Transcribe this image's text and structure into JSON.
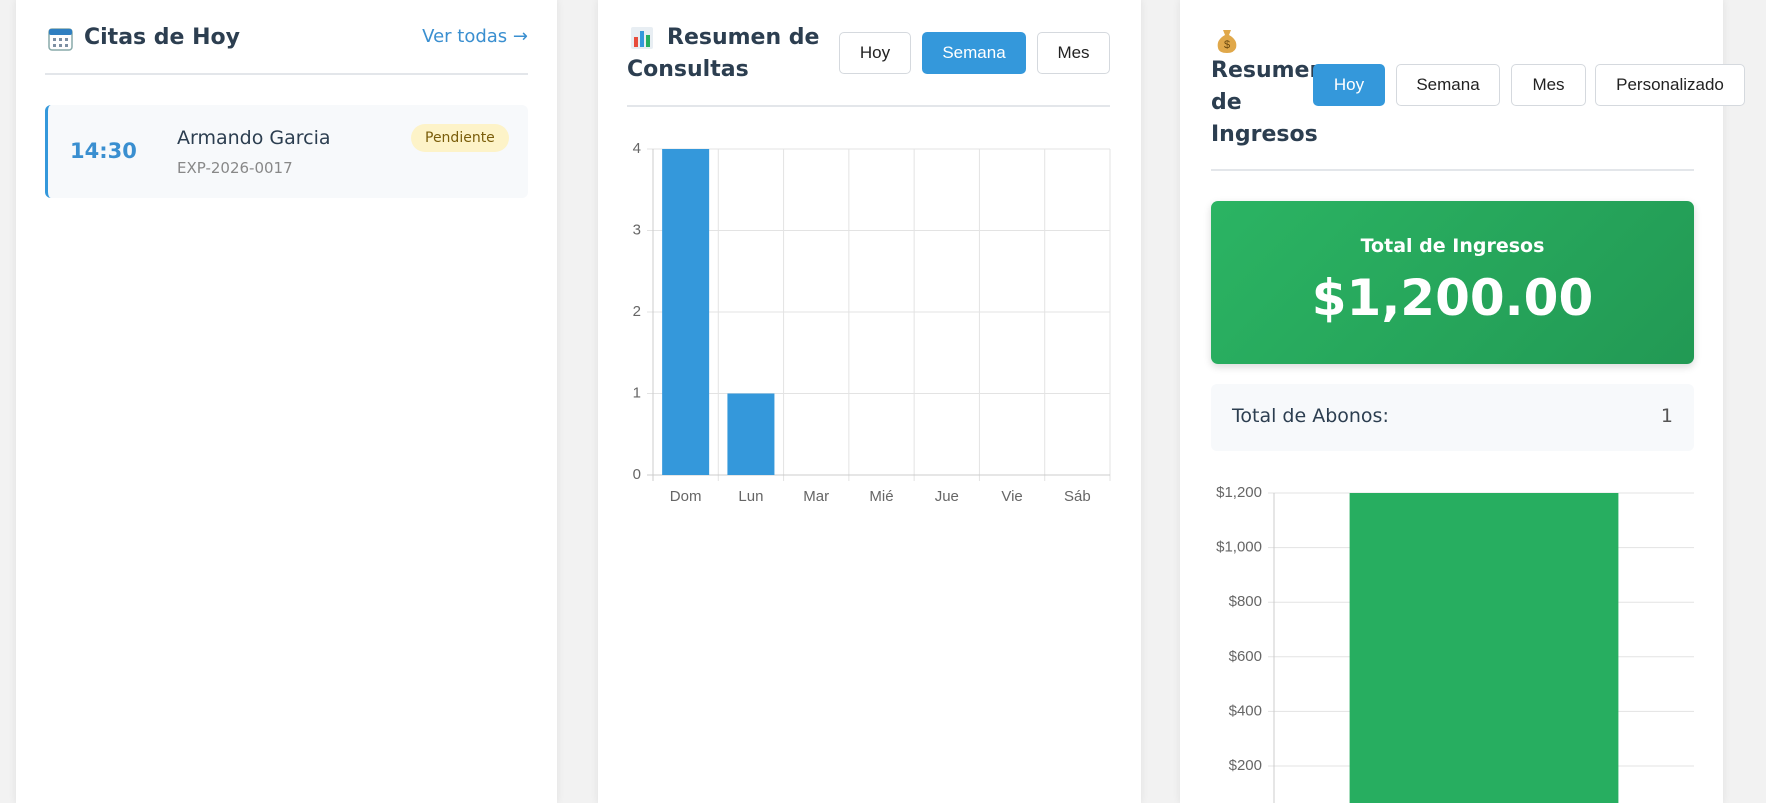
{
  "citas": {
    "title": "Citas de Hoy",
    "link": "Ver todas →",
    "appointments": [
      {
        "time": "14:30",
        "name": "Armando Garcia",
        "code": "EXP-2026-0017",
        "status": "Pendiente"
      }
    ]
  },
  "consultas": {
    "title": "Resumen de Consultas",
    "buttons": [
      "Hoy",
      "Semana",
      "Mes"
    ],
    "active": 1
  },
  "ingresos": {
    "title": "Resumen de Ingresos",
    "buttons": [
      "Hoy",
      "Semana",
      "Mes",
      "Personalizado"
    ],
    "active": 0,
    "total_label": "Total de Ingresos",
    "total_value": "$1,200.00",
    "abonos_label": "Total de Abonos:",
    "abonos_value": 1
  },
  "chart_data": [
    {
      "type": "bar",
      "categories": [
        "Dom",
        "Lun",
        "Mar",
        "Mié",
        "Jue",
        "Vie",
        "Sáb"
      ],
      "values": [
        4,
        1,
        0,
        0,
        0,
        0,
        0
      ],
      "color": "#3498db",
      "ylim": [
        0,
        4
      ],
      "yticks": [
        0,
        1,
        2,
        3,
        4
      ],
      "grid": true
    },
    {
      "type": "bar",
      "categories": [
        null
      ],
      "values": [
        1200
      ],
      "color": "#27ae60",
      "ylim": [
        0,
        1200
      ],
      "yticks": [
        {
          "value": 200,
          "label": "$200"
        },
        {
          "value": 400,
          "label": "$400"
        },
        {
          "value": 600,
          "label": "$600"
        },
        {
          "value": 800,
          "label": "$800"
        },
        {
          "value": 1000,
          "label": "$1,000"
        },
        {
          "value": 1200,
          "label": "$1,200"
        }
      ],
      "grid": true
    }
  ]
}
